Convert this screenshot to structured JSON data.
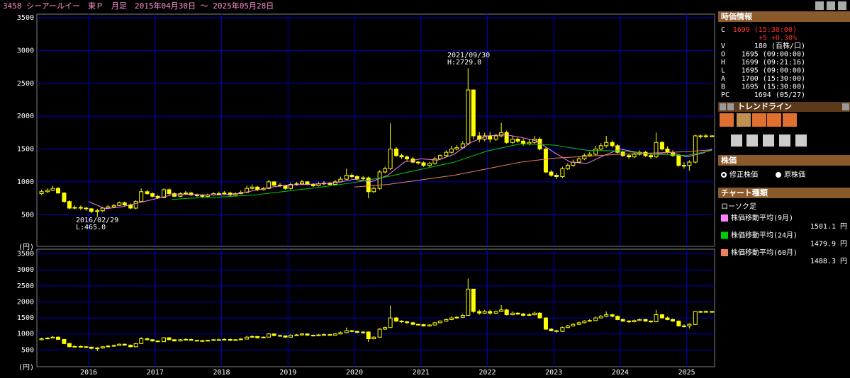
{
  "header": {
    "title": "3458 シーアールイー　東Ｐ　月足　2015年04月30日 ～ 2025年05月28日"
  },
  "chart_data": [
    {
      "type": "candlestick",
      "color": "#ffff00",
      "grid": true,
      "grid_color": "#0000c8",
      "y_unit": "(円)",
      "xlim": [
        2015.22,
        2025.42
      ],
      "ylim": [
        50,
        3500
      ],
      "yticks": [
        500,
        1000,
        1500,
        2000,
        2500,
        3000,
        3500
      ],
      "annotations": [
        [
          "2021/09/30",
          "H:2729.0"
        ],
        [
          "2016/02/29",
          "L:465.0"
        ]
      ],
      "x": [
        2015.29,
        2015.38,
        2015.46,
        2015.54,
        2015.63,
        2015.71,
        2015.79,
        2015.88,
        2015.96,
        2016.04,
        2016.13,
        2016.21,
        2016.29,
        2016.38,
        2016.46,
        2016.54,
        2016.63,
        2016.71,
        2016.79,
        2016.88,
        2016.96,
        2017.04,
        2017.13,
        2017.21,
        2017.29,
        2017.38,
        2017.46,
        2017.54,
        2017.63,
        2017.71,
        2017.79,
        2017.88,
        2017.96,
        2018.04,
        2018.13,
        2018.21,
        2018.29,
        2018.38,
        2018.46,
        2018.54,
        2018.63,
        2018.71,
        2018.79,
        2018.88,
        2018.96,
        2019.04,
        2019.13,
        2019.21,
        2019.29,
        2019.38,
        2019.46,
        2019.54,
        2019.63,
        2019.71,
        2019.79,
        2019.88,
        2019.96,
        2020.04,
        2020.13,
        2020.21,
        2020.29,
        2020.38,
        2020.46,
        2020.54,
        2020.63,
        2020.71,
        2020.79,
        2020.88,
        2020.96,
        2021.04,
        2021.13,
        2021.21,
        2021.29,
        2021.38,
        2021.46,
        2021.54,
        2021.63,
        2021.71,
        2021.79,
        2021.88,
        2021.96,
        2022.04,
        2022.13,
        2022.21,
        2022.29,
        2022.38,
        2022.46,
        2022.54,
        2022.63,
        2022.71,
        2022.79,
        2022.88,
        2022.96,
        2023.04,
        2023.13,
        2023.21,
        2023.29,
        2023.38,
        2023.46,
        2023.54,
        2023.63,
        2023.71,
        2023.79,
        2023.88,
        2023.96,
        2024.04,
        2024.13,
        2024.21,
        2024.29,
        2024.38,
        2024.46,
        2024.54,
        2024.63,
        2024.71,
        2024.79,
        2024.88,
        2024.96,
        2025.04,
        2025.13,
        2025.21,
        2025.29,
        2025.38
      ],
      "open": [
        820,
        850,
        870,
        900,
        830,
        700,
        600,
        610,
        600,
        590,
        550,
        560,
        600,
        620,
        640,
        680,
        650,
        600,
        700,
        850,
        820,
        780,
        760,
        880,
        820,
        780,
        820,
        830,
        800,
        790,
        780,
        800,
        820,
        820,
        830,
        800,
        820,
        840,
        900,
        920,
        880,
        900,
        1000,
        950,
        940,
        900,
        960,
        970,
        1000,
        960,
        940,
        970,
        980,
        960,
        1000,
        1040,
        1100,
        1080,
        1050,
        1060,
        850,
        900,
        1150,
        1200,
        1500,
        1400,
        1380,
        1350,
        1300,
        1290,
        1250,
        1280,
        1350,
        1400,
        1450,
        1500,
        1520,
        1580,
        2400,
        1700,
        1650,
        1700,
        1650,
        1700,
        1750,
        1600,
        1650,
        1620,
        1580,
        1600,
        1650,
        1500,
        1150,
        1100,
        1080,
        1200,
        1250,
        1300,
        1350,
        1400,
        1420,
        1500,
        1550,
        1600,
        1550,
        1450,
        1400,
        1380,
        1420,
        1450,
        1400,
        1380,
        1600,
        1500,
        1450,
        1400,
        1250,
        1250,
        1300,
        1700,
        1690,
        1700
      ],
      "high": [
        880,
        900,
        940,
        920,
        840,
        720,
        640,
        640,
        620,
        600,
        590,
        620,
        650,
        660,
        700,
        700,
        670,
        720,
        900,
        880,
        840,
        800,
        900,
        900,
        840,
        840,
        860,
        850,
        820,
        810,
        820,
        840,
        850,
        860,
        850,
        840,
        870,
        940,
        960,
        940,
        920,
        1030,
        1010,
        980,
        950,
        990,
        1000,
        1030,
        1010,
        980,
        1000,
        1010,
        1000,
        1030,
        1080,
        1200,
        1130,
        1100,
        1090,
        1080,
        930,
        1180,
        1230,
        1890,
        1530,
        1430,
        1400,
        1380,
        1320,
        1310,
        1300,
        1380,
        1420,
        1480,
        1550,
        1560,
        1620,
        2729,
        2400,
        1760,
        1750,
        1760,
        1730,
        1900,
        1780,
        1700,
        1680,
        1660,
        1650,
        1700,
        1680,
        1520,
        1180,
        1130,
        1230,
        1280,
        1340,
        1380,
        1430,
        1460,
        1550,
        1590,
        1700,
        1630,
        1580,
        1480,
        1430,
        1450,
        1480,
        1470,
        1420,
        1750,
        1620,
        1540,
        1480,
        1420,
        1300,
        1330,
        1720,
        1720,
        1730,
        1710
      ],
      "low": [
        800,
        830,
        860,
        820,
        680,
        580,
        580,
        570,
        560,
        520,
        465,
        540,
        590,
        600,
        630,
        630,
        580,
        580,
        690,
        800,
        760,
        740,
        750,
        800,
        770,
        770,
        800,
        790,
        770,
        760,
        770,
        790,
        800,
        800,
        780,
        790,
        810,
        830,
        880,
        860,
        870,
        890,
        930,
        920,
        880,
        880,
        940,
        950,
        950,
        920,
        930,
        950,
        940,
        950,
        990,
        1030,
        1050,
        1020,
        1010,
        750,
        830,
        880,
        1130,
        1180,
        1380,
        1350,
        1320,
        1280,
        1260,
        1230,
        1230,
        1260,
        1330,
        1380,
        1430,
        1480,
        1500,
        1560,
        1650,
        1600,
        1620,
        1600,
        1620,
        1680,
        1580,
        1580,
        1590,
        1550,
        1560,
        1580,
        1480,
        1130,
        1080,
        1040,
        1060,
        1180,
        1230,
        1280,
        1330,
        1380,
        1400,
        1480,
        1520,
        1520,
        1430,
        1380,
        1350,
        1360,
        1400,
        1380,
        1350,
        1360,
        1480,
        1430,
        1380,
        1230,
        1200,
        1170,
        1280,
        1660,
        1670,
        1690
      ],
      "close": [
        850,
        870,
        900,
        830,
        700,
        600,
        610,
        600,
        590,
        550,
        560,
        600,
        620,
        640,
        680,
        650,
        600,
        700,
        850,
        820,
        780,
        760,
        880,
        820,
        780,
        820,
        830,
        800,
        790,
        780,
        800,
        820,
        820,
        830,
        800,
        820,
        840,
        900,
        920,
        880,
        900,
        1000,
        950,
        940,
        900,
        960,
        970,
        1000,
        960,
        940,
        970,
        980,
        960,
        1000,
        1040,
        1100,
        1080,
        1050,
        1060,
        850,
        900,
        1150,
        1200,
        1500,
        1400,
        1380,
        1350,
        1300,
        1290,
        1250,
        1280,
        1350,
        1400,
        1450,
        1500,
        1520,
        1580,
        2400,
        1700,
        1650,
        1700,
        1650,
        1700,
        1750,
        1600,
        1650,
        1620,
        1580,
        1600,
        1650,
        1500,
        1150,
        1100,
        1080,
        1200,
        1250,
        1300,
        1350,
        1400,
        1420,
        1500,
        1550,
        1600,
        1550,
        1450,
        1400,
        1380,
        1420,
        1450,
        1400,
        1380,
        1600,
        1500,
        1450,
        1400,
        1250,
        1250,
        1300,
        1700,
        1690,
        1700,
        1699
      ],
      "series": [
        {
          "name": "株価移動平均(9月)",
          "color": "#ff80ff",
          "last_label": "1501.1 円",
          "x": [
            2016.0,
            2016.25,
            2016.5,
            2016.75,
            2017.0,
            2017.25,
            2017.5,
            2017.75,
            2018.0,
            2018.25,
            2018.5,
            2018.75,
            2019.0,
            2019.25,
            2019.5,
            2019.75,
            2020.0,
            2020.25,
            2020.5,
            2020.75,
            2021.0,
            2021.25,
            2021.5,
            2021.75,
            2022.0,
            2022.25,
            2022.5,
            2022.75,
            2023.0,
            2023.25,
            2023.5,
            2023.75,
            2024.0,
            2024.25,
            2024.5,
            2024.75,
            2025.0,
            2025.25,
            2025.38
          ],
          "values": [
            700,
            590,
            620,
            680,
            740,
            800,
            810,
            800,
            800,
            820,
            870,
            920,
            950,
            960,
            970,
            990,
            1040,
            1000,
            1100,
            1300,
            1350,
            1330,
            1420,
            1600,
            1700,
            1720,
            1680,
            1620,
            1450,
            1300,
            1280,
            1400,
            1500,
            1450,
            1420,
            1450,
            1380,
            1440,
            1501.1
          ]
        },
        {
          "name": "株価移動平均(24月)",
          "color": "#00d000",
          "last_label": "1479.9 円",
          "x": [
            2017.25,
            2017.5,
            2017.75,
            2018.0,
            2018.5,
            2019.0,
            2019.5,
            2020.0,
            2020.5,
            2021.0,
            2021.5,
            2022.0,
            2022.5,
            2023.0,
            2023.5,
            2024.0,
            2024.5,
            2025.0,
            2025.38
          ],
          "values": [
            730,
            750,
            760,
            770,
            800,
            860,
            920,
            990,
            1080,
            1190,
            1300,
            1470,
            1580,
            1560,
            1480,
            1470,
            1420,
            1400,
            1479.9
          ]
        },
        {
          "name": "株価移動平均(60月)",
          "color": "#f08060",
          "last_label": "1488.3 円",
          "x": [
            2020.0,
            2020.5,
            2021.0,
            2021.5,
            2022.0,
            2022.5,
            2023.0,
            2023.5,
            2024.0,
            2024.5,
            2025.0,
            2025.38
          ],
          "values": [
            920,
            960,
            1030,
            1100,
            1200,
            1300,
            1360,
            1390,
            1420,
            1440,
            1460,
            1488.3
          ]
        }
      ]
    },
    {
      "type": "candlestick",
      "grid": true,
      "y_unit": "(円)",
      "xlim": [
        2015.22,
        2025.42
      ],
      "ylim": [
        0,
        3580
      ],
      "yticks": [
        500,
        1000,
        1500,
        2000,
        2500,
        3000,
        3500
      ],
      "xticks": [
        2016,
        2017,
        2018,
        2019,
        2020,
        2021,
        2022,
        2023,
        2024,
        2025
      ]
    }
  ],
  "side_panel": {
    "quote": {
      "title": "時価情報",
      "rows": [
        {
          "label": "C",
          "value": "1699 (15:30:00)"
        },
        {
          "value": "+5 +0.30%"
        },
        {
          "label": "V",
          "value": "180 (百株/口)"
        },
        {
          "label": "O",
          "value": "1695 (09:00:00)"
        },
        {
          "label": "H",
          "value": "1699 (09:21:16)"
        },
        {
          "label": "L",
          "value": "1695 (09:00:00)"
        },
        {
          "label": "A",
          "value": "1700 (15:30:00)"
        },
        {
          "label": "B",
          "value": "1695 (15:30:00)"
        },
        {
          "label": "PC",
          "value": "1694 (05/27)"
        }
      ]
    },
    "trendline": {
      "title": "トレンドライン"
    },
    "price": {
      "title": "株価",
      "options": [
        "修正株価",
        "原株価"
      ]
    },
    "chart_type": {
      "title": "チャート種類",
      "value": "ローソク足"
    }
  }
}
